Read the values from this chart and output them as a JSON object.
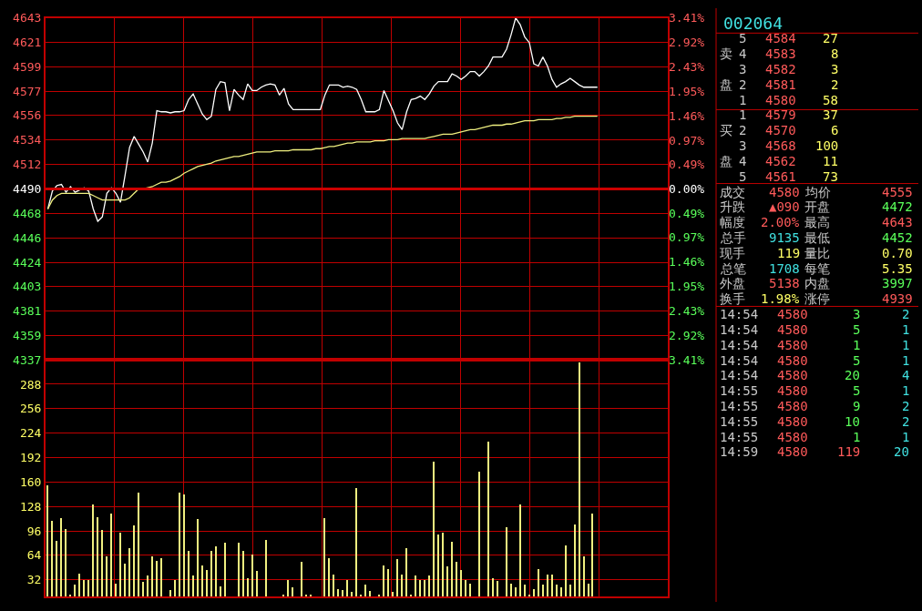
{
  "chart_data": [
    {
      "type": "line",
      "categories": [
        null,
        null,
        null,
        null,
        null,
        null,
        null,
        null,
        null,
        null,
        null,
        null,
        null,
        null,
        null,
        null,
        null,
        null,
        null,
        null,
        null,
        null,
        null,
        null,
        null,
        null,
        null,
        null,
        null,
        null,
        null,
        null,
        null,
        null,
        null,
        null,
        null,
        null,
        null,
        null,
        null,
        null,
        null,
        null,
        null,
        null,
        null,
        null,
        null,
        null,
        null,
        null,
        null,
        null,
        null,
        null,
        null,
        null,
        null,
        null,
        null,
        null,
        null,
        null,
        null,
        null,
        null,
        null,
        null,
        null,
        null,
        null,
        null,
        null,
        null,
        null,
        null,
        null,
        null,
        null,
        null,
        null,
        null,
        null,
        null,
        null,
        null,
        null,
        null,
        null,
        null,
        null,
        null,
        null,
        null,
        null,
        null,
        null,
        null,
        null,
        null,
        null,
        null,
        null,
        null,
        null,
        null,
        null,
        null,
        null,
        null,
        null,
        null,
        null,
        null,
        null,
        null,
        null,
        null,
        null,
        null,
        null,
        null,
        null,
        null,
        null,
        null,
        null,
        null,
        null,
        null,
        null,
        null,
        null,
        null,
        null,
        null
      ],
      "series": [
        {
          "color": "#ffffff",
          "values": [
            4472,
            4488,
            4493,
            4494,
            4487,
            4492,
            4487,
            4489,
            4491,
            4488,
            4472,
            4461,
            4465,
            4486,
            4491,
            4486,
            4478,
            4502,
            4527,
            4537,
            4530,
            4523,
            4514,
            4531,
            4560,
            4559,
            4559,
            4558,
            4559,
            4559,
            4560,
            4570,
            4575,
            4566,
            4557,
            4552,
            4555,
            4579,
            4586,
            4585,
            4560,
            4579,
            4574,
            4570,
            4584,
            4578,
            4578,
            4581,
            4583,
            4584,
            4583,
            4574,
            4580,
            4566,
            4561,
            4561,
            4561,
            4561,
            4561,
            4561,
            4561,
            4574,
            4583,
            4583,
            4583,
            4581,
            4582,
            4581,
            4579,
            4570,
            4559,
            4559,
            4559,
            4561,
            4578,
            4569,
            4560,
            4549,
            4543,
            4559,
            4570,
            4571,
            4573,
            4570,
            4575,
            4582,
            4586,
            4586,
            4586,
            4593,
            4591,
            4588,
            4591,
            4595,
            4595,
            4591,
            4595,
            4600,
            4608,
            4608,
            4608,
            4615,
            4628,
            4643,
            4637,
            4626,
            4621,
            4602,
            4600,
            4608,
            4600,
            4588,
            4581,
            4584,
            4586,
            4589,
            4586,
            4583,
            4581,
            4581,
            4581,
            4581,
            null,
            null,
            null,
            null,
            null,
            null,
            null,
            null,
            null,
            null,
            null,
            null,
            null,
            null,
            null
          ]
        },
        {
          "color": "#f0f080",
          "values": [
            4472,
            4480,
            4484,
            4486,
            4486,
            4486,
            4486,
            4486,
            4486,
            4486,
            4484,
            4482,
            4480,
            4480,
            4480,
            4480,
            4480,
            4480,
            4482,
            4486,
            4490,
            4490,
            4491,
            4492,
            4494,
            4496,
            4496,
            4497,
            4499,
            4501,
            4504,
            4506,
            4508,
            4510,
            4511,
            4512,
            4513,
            4515,
            4516,
            4517,
            4518,
            4519,
            4519,
            4520,
            4521,
            4522,
            4523,
            4523,
            4523,
            4523,
            4524,
            4524,
            4524,
            4524,
            4525,
            4525,
            4525,
            4525,
            4525,
            4526,
            4526,
            4527,
            4528,
            4528,
            4529,
            4530,
            4531,
            4531,
            4532,
            4532,
            4532,
            4532,
            4533,
            4533,
            4533,
            4534,
            4534,
            4534,
            4535,
            4535,
            4535,
            4535,
            4535,
            4535,
            4536,
            4537,
            4538,
            4539,
            4539,
            4539,
            4540,
            4541,
            4542,
            4543,
            4543,
            4544,
            4545,
            4546,
            4547,
            4547,
            4547,
            4548,
            4548,
            4549,
            4550,
            4551,
            4551,
            4551,
            4552,
            4552,
            4552,
            4552,
            4553,
            4553,
            4554,
            4554,
            4555,
            4555,
            4555,
            4555,
            4555,
            4555,
            null,
            null,
            null,
            null,
            null,
            null,
            null,
            null,
            null,
            null,
            null,
            null,
            null,
            null,
            null
          ]
        }
      ],
      "ylim": [
        4337,
        4643
      ],
      "yticks": [
        4643,
        4621,
        4599,
        4577,
        4556,
        4534,
        4512,
        4490,
        4468,
        4446,
        4424,
        4403,
        4381,
        4359,
        4337
      ],
      "y2lim": [
        -3.41,
        3.41
      ],
      "y2ticks": [
        {
          "value": 3.41,
          "label": "3.41%"
        },
        {
          "value": 2.92,
          "label": "2.92%"
        },
        {
          "value": 2.43,
          "label": "2.43%"
        },
        {
          "value": 1.95,
          "label": "1.95%"
        },
        {
          "value": 1.46,
          "label": "1.46%"
        },
        {
          "value": 0.97,
          "label": "0.97%"
        },
        {
          "value": 0.49,
          "label": "0.49%"
        },
        {
          "value": 0,
          "label": "0.00%"
        },
        {
          "value": -0.49,
          "label": "0.49%"
        },
        {
          "value": -0.97,
          "label": "0.97%"
        },
        {
          "value": -1.46,
          "label": "1.46%"
        },
        {
          "value": -1.95,
          "label": "1.95%"
        },
        {
          "value": -2.43,
          "label": "2.43%"
        },
        {
          "value": -2.92,
          "label": "2.92%"
        },
        {
          "value": -3.41,
          "label": "3.41%"
        }
      ],
      "ref_lines": [
        {
          "axis": "y",
          "value": 4490,
          "color": "#cc0000"
        }
      ],
      "grid": true,
      "tick_labels": "y"
    },
    {
      "type": "bar",
      "categories": [
        null,
        null,
        null,
        null,
        null,
        null,
        null,
        null,
        null,
        null,
        null,
        null,
        null,
        null,
        null,
        null,
        null,
        null,
        null,
        null,
        null,
        null,
        null,
        null,
        null,
        null,
        null,
        null,
        null,
        null,
        null,
        null,
        null,
        null,
        null,
        null,
        null,
        null,
        null,
        null,
        null,
        null,
        null,
        null,
        null,
        null,
        null,
        null,
        null,
        null,
        null,
        null,
        null,
        null,
        null,
        null,
        null,
        null,
        null,
        null,
        null,
        null,
        null,
        null,
        null,
        null,
        null,
        null,
        null,
        null,
        null,
        null,
        null,
        null,
        null,
        null,
        null,
        null,
        null,
        null,
        null,
        null,
        null,
        null,
        null,
        null,
        null,
        null,
        null,
        null,
        null,
        null,
        null,
        null,
        null,
        null,
        null,
        null,
        null,
        null,
        null,
        null,
        null,
        null,
        null,
        null,
        null,
        null,
        null,
        null,
        null,
        null,
        null,
        null,
        null,
        null,
        null,
        null,
        null,
        null,
        null,
        null,
        null,
        null,
        null,
        null,
        null,
        null,
        null,
        null,
        null,
        null,
        null,
        null,
        null,
        null,
        null
      ],
      "values": [
        155,
        109,
        83,
        112,
        98,
        12,
        26,
        40,
        32,
        32,
        130,
        114,
        97,
        62,
        118,
        27,
        93,
        53,
        73,
        103,
        146,
        29,
        37,
        62,
        57,
        60,
        null,
        19,
        31,
        146,
        144,
        70,
        38,
        111,
        51,
        45,
        70,
        76,
        23,
        80,
        null,
        null,
        80,
        70,
        34,
        65,
        43,
        null,
        84,
        null,
        null,
        null,
        13,
        32,
        22,
        null,
        55,
        12,
        13,
        null,
        null,
        112,
        60,
        39,
        20,
        18,
        32,
        16,
        152,
        13,
        25,
        17,
        null,
        13,
        51,
        46,
        16,
        59,
        39,
        73,
        13,
        38,
        32,
        31,
        38,
        186,
        91,
        94,
        50,
        81,
        55,
        45,
        31,
        27,
        null,
        173,
        null,
        213,
        34,
        30,
        null,
        101,
        27,
        22,
        130,
        26,
        13,
        20,
        46,
        25,
        39,
        39,
        25,
        22,
        77,
        25,
        104,
        316,
        62,
        27,
        119,
        null,
        null,
        null,
        null,
        null,
        null,
        null,
        null,
        null,
        null,
        null,
        null,
        null,
        null,
        null,
        null
      ],
      "color": "#f0f080",
      "ylim": [
        10,
        320
      ],
      "yticks": [
        288,
        256,
        224,
        192,
        160,
        128,
        96,
        64,
        32
      ],
      "grid": true,
      "tick_labels": "y"
    },
    {
      "type": "other",
      "annotations": [
        "002064",
        "5\t4584\t27",
        "卖\t4\t4583\t8",
        "3\t4582\t3",
        "盘\t2\t4581\t2",
        "1\t4580\t58",
        "1\t4579\t37",
        "买\t2\t4570\t6",
        "3\t4568\t100",
        "盘\t4\t4562\t11",
        "5\t4561\t73",
        "成交\t4580\t均价\t4555",
        "升跌\t▲090\t开盘\t4472",
        "幅度\t2.00%\t最高\t4643",
        "总手\t9135\t最低\t4452",
        "现手\t119\t量比\t0.70",
        "总笔\t1708\t每笔\t5.35",
        "外盘\t5138\t内盘\t3997",
        "换手\t1.98%\t涨停\t4939",
        "14:54\t4580\t3\t2",
        "14:54\t4580\t5\t1",
        "14:54\t4580\t1\t1",
        "14:54\t4580\t5\t1",
        "14:54\t4580\t20\t4",
        "14:55\t4580\t5\t1",
        "14:55\t4580\t9\t2",
        "14:55\t4580\t10\t2",
        "14:55\t4580\t1\t1",
        "14:59\t4580\t119\t20"
      ]
    }
  ]
}
